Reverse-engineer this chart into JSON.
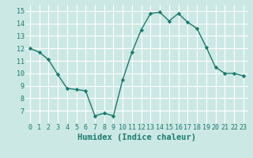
{
  "x": [
    0,
    1,
    2,
    3,
    4,
    5,
    6,
    7,
    8,
    9,
    10,
    11,
    12,
    13,
    14,
    15,
    16,
    17,
    18,
    19,
    20,
    21,
    22,
    23
  ],
  "y": [
    12.0,
    11.7,
    11.1,
    9.9,
    8.8,
    8.7,
    8.6,
    6.6,
    6.8,
    6.6,
    9.5,
    11.7,
    13.5,
    14.8,
    14.9,
    14.2,
    14.8,
    14.1,
    13.6,
    12.1,
    10.5,
    10.0,
    10.0,
    9.8
  ],
  "line_color": "#1a7a6e",
  "marker": "D",
  "marker_size": 2.2,
  "linewidth": 1.0,
  "xlabel": "Humidex (Indice chaleur)",
  "xlim": [
    -0.5,
    23.5
  ],
  "ylim": [
    6.0,
    15.5
  ],
  "yticks": [
    7,
    8,
    9,
    10,
    11,
    12,
    13,
    14,
    15
  ],
  "xticks": [
    0,
    1,
    2,
    3,
    4,
    5,
    6,
    7,
    8,
    9,
    10,
    11,
    12,
    13,
    14,
    15,
    16,
    17,
    18,
    19,
    20,
    21,
    22,
    23
  ],
  "bg_color": "#cce8e4",
  "grid_color": "#ffffff",
  "tick_label_fontsize": 6.0,
  "xlabel_fontsize": 7.5,
  "axes_color": "#1a7a6e"
}
